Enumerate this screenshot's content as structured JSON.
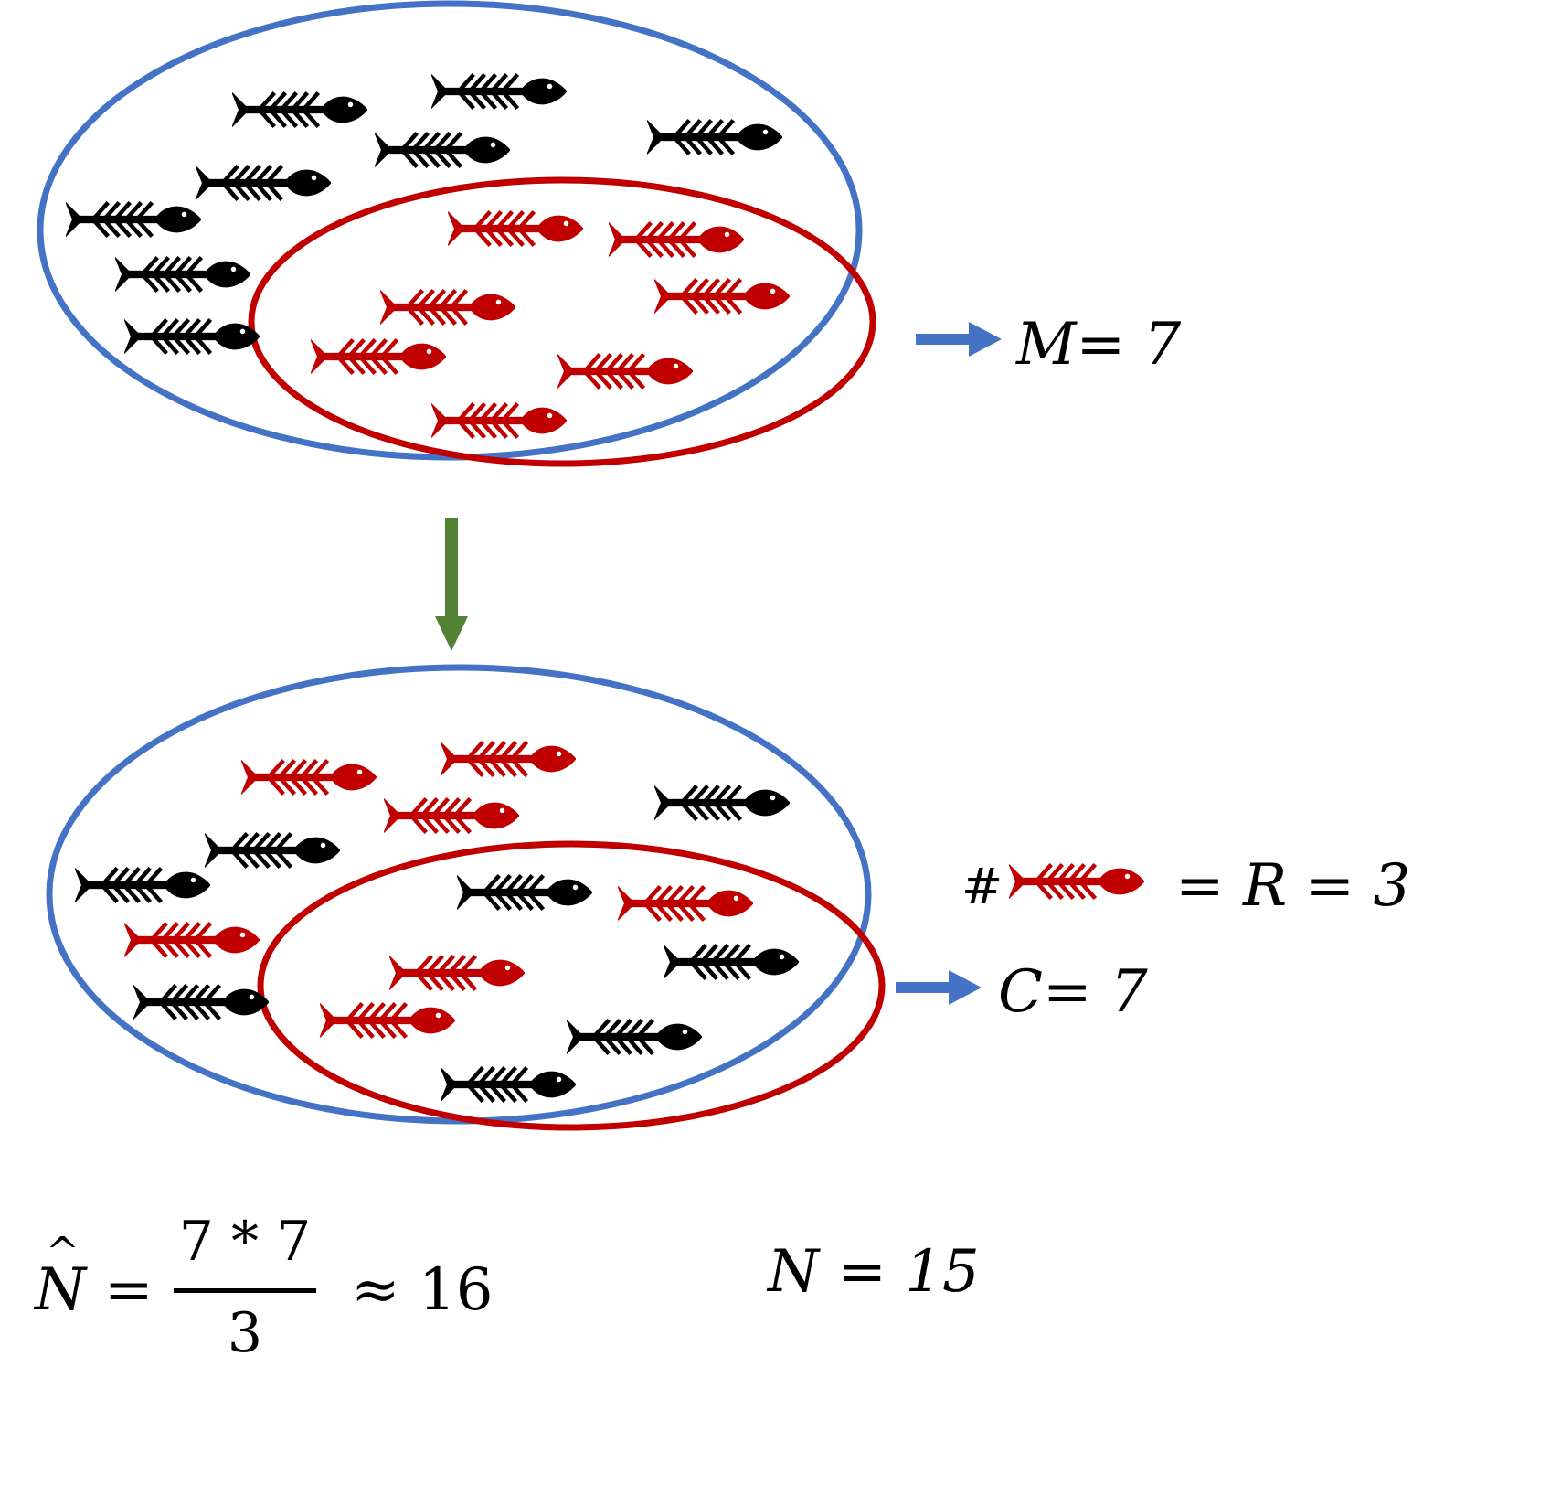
{
  "colors": {
    "population_ellipse": "#4472C4",
    "sample_ellipse": "#C00000",
    "unmarked_fish": "#000000",
    "marked_fish": "#C00000",
    "label_arrow": "#4472C4",
    "flow_arrow": "#548235"
  },
  "icons": {
    "fish": "fish-skeleton-icon",
    "arrow_right": "arrow-right-icon",
    "arrow_down": "arrow-down-icon"
  },
  "first_capture": {
    "label": "M= 7",
    "fish_count": 15,
    "marked_count": 7
  },
  "second_capture": {
    "recaptured_label_prefix": "#",
    "recaptured_label_suffix": "= R = 3",
    "catch_label": "C= 7",
    "fish_count": 15,
    "marked_count": 7
  },
  "estimate": {
    "lhs": "N",
    "hat": "^",
    "equals": "=",
    "numerator": "7 * 7",
    "denominator": "3",
    "approx": "≈ 16"
  },
  "true_population": {
    "label": "N = 15"
  }
}
